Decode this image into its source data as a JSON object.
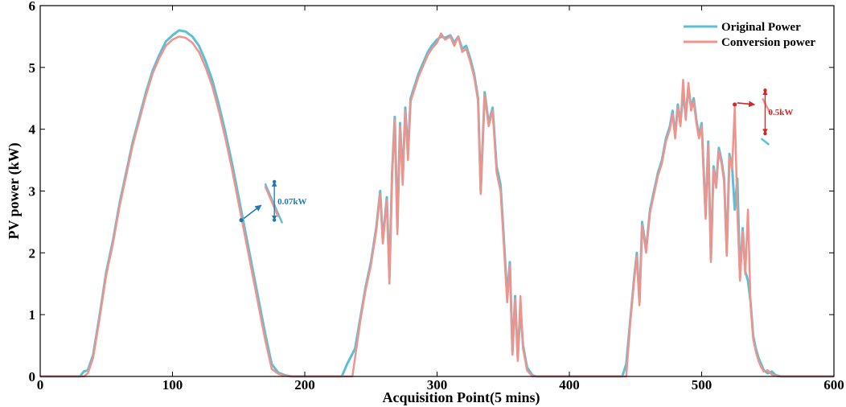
{
  "chart_data": {
    "type": "line",
    "title": "",
    "xlabel": "Acquisition Point(5 mins)",
    "ylabel": "PV power (kW)",
    "xlim": [
      0,
      600
    ],
    "ylim": [
      0,
      6
    ],
    "xticks": [
      "0",
      "100",
      "200",
      "300",
      "400",
      "500",
      "600"
    ],
    "yticks": [
      "0",
      "1",
      "2",
      "3",
      "4",
      "5",
      "6"
    ],
    "legend": {
      "position": "top-right"
    },
    "series": [
      {
        "name": "Original Power",
        "color": "#5bc0d6",
        "points": [
          [
            0,
            0
          ],
          [
            30,
            0
          ],
          [
            33,
            0.08
          ],
          [
            36,
            0.1
          ],
          [
            40,
            0.35
          ],
          [
            45,
            1.0
          ],
          [
            50,
            1.7
          ],
          [
            55,
            2.2
          ],
          [
            60,
            2.8
          ],
          [
            65,
            3.3
          ],
          [
            70,
            3.8
          ],
          [
            75,
            4.2
          ],
          [
            80,
            4.6
          ],
          [
            85,
            4.95
          ],
          [
            90,
            5.2
          ],
          [
            95,
            5.42
          ],
          [
            100,
            5.52
          ],
          [
            105,
            5.6
          ],
          [
            110,
            5.58
          ],
          [
            115,
            5.5
          ],
          [
            120,
            5.35
          ],
          [
            125,
            5.1
          ],
          [
            130,
            4.8
          ],
          [
            135,
            4.4
          ],
          [
            140,
            3.95
          ],
          [
            145,
            3.45
          ],
          [
            150,
            2.9
          ],
          [
            155,
            2.35
          ],
          [
            160,
            1.8
          ],
          [
            165,
            1.25
          ],
          [
            170,
            0.7
          ],
          [
            175,
            0.2
          ],
          [
            180,
            0.06
          ],
          [
            185,
            0.02
          ],
          [
            190,
            0
          ],
          [
            228,
            0
          ],
          [
            232,
            0.2
          ],
          [
            238,
            0.45
          ],
          [
            242,
            0.95
          ],
          [
            246,
            1.45
          ],
          [
            250,
            1.85
          ],
          [
            254,
            2.4
          ],
          [
            257,
            3.0
          ],
          [
            259,
            2.2
          ],
          [
            262,
            2.9
          ],
          [
            264,
            1.6
          ],
          [
            266,
            3.3
          ],
          [
            268,
            4.2
          ],
          [
            270,
            2.4
          ],
          [
            272,
            4.1
          ],
          [
            274,
            3.2
          ],
          [
            276,
            4.35
          ],
          [
            278,
            3.6
          ],
          [
            280,
            4.5
          ],
          [
            283,
            4.7
          ],
          [
            286,
            4.9
          ],
          [
            290,
            5.1
          ],
          [
            293,
            5.25
          ],
          [
            296,
            5.35
          ],
          [
            300,
            5.45
          ],
          [
            303,
            5.5
          ],
          [
            306,
            5.48
          ],
          [
            310,
            5.52
          ],
          [
            313,
            5.4
          ],
          [
            316,
            5.5
          ],
          [
            319,
            5.3
          ],
          [
            322,
            5.35
          ],
          [
            325,
            5.15
          ],
          [
            328,
            4.9
          ],
          [
            331,
            4.5
          ],
          [
            333,
            3.0
          ],
          [
            336,
            4.6
          ],
          [
            339,
            4.1
          ],
          [
            342,
            4.35
          ],
          [
            345,
            3.4
          ],
          [
            348,
            3.1
          ],
          [
            350,
            2.4
          ],
          [
            353,
            1.3
          ],
          [
            355,
            1.85
          ],
          [
            357,
            0.4
          ],
          [
            359,
            1.3
          ],
          [
            361,
            0.3
          ],
          [
            363,
            1.1
          ],
          [
            365,
            0.5
          ],
          [
            368,
            0.15
          ],
          [
            372,
            0.02
          ],
          [
            375,
            0
          ],
          [
            440,
            0
          ],
          [
            443,
            0.2
          ],
          [
            446,
            0.9
          ],
          [
            449,
            1.6
          ],
          [
            451,
            2.0
          ],
          [
            453,
            1.2
          ],
          [
            455,
            2.5
          ],
          [
            458,
            2.05
          ],
          [
            461,
            2.7
          ],
          [
            464,
            3.0
          ],
          [
            467,
            3.3
          ],
          [
            470,
            3.5
          ],
          [
            473,
            3.85
          ],
          [
            476,
            4.05
          ],
          [
            478,
            4.3
          ],
          [
            480,
            3.9
          ],
          [
            482,
            4.4
          ],
          [
            484,
            4.1
          ],
          [
            486,
            4.6
          ],
          [
            488,
            4.2
          ],
          [
            490,
            4.7
          ],
          [
            492,
            4.35
          ],
          [
            494,
            4.5
          ],
          [
            496,
            4.15
          ],
          [
            498,
            3.9
          ],
          [
            500,
            4.1
          ],
          [
            503,
            2.6
          ],
          [
            505,
            3.8
          ],
          [
            507,
            1.9
          ],
          [
            509,
            3.4
          ],
          [
            511,
            3.1
          ],
          [
            513,
            3.7
          ],
          [
            515,
            3.5
          ],
          [
            517,
            3.2
          ],
          [
            519,
            2.0
          ],
          [
            521,
            3.6
          ],
          [
            523,
            3.4
          ],
          [
            525,
            2.7
          ],
          [
            527,
            3.2
          ],
          [
            529,
            1.6
          ],
          [
            531,
            2.4
          ],
          [
            533,
            1.7
          ],
          [
            535,
            1.55
          ],
          [
            537,
            1.2
          ],
          [
            539,
            0.65
          ],
          [
            541,
            0.45
          ],
          [
            543,
            0.3
          ],
          [
            545,
            0.2
          ],
          [
            547,
            0.1
          ],
          [
            550,
            0.05
          ],
          [
            553,
            0.08
          ],
          [
            556,
            0.02
          ],
          [
            560,
            0
          ],
          [
            600,
            0
          ]
        ]
      },
      {
        "name": "Conversion power",
        "color": "#f0938c",
        "points": [
          [
            0,
            0
          ],
          [
            33,
            0
          ],
          [
            36,
            0.05
          ],
          [
            40,
            0.3
          ],
          [
            45,
            0.95
          ],
          [
            50,
            1.65
          ],
          [
            55,
            2.15
          ],
          [
            60,
            2.75
          ],
          [
            65,
            3.25
          ],
          [
            70,
            3.75
          ],
          [
            75,
            4.15
          ],
          [
            80,
            4.55
          ],
          [
            85,
            4.9
          ],
          [
            90,
            5.15
          ],
          [
            95,
            5.35
          ],
          [
            100,
            5.45
          ],
          [
            105,
            5.5
          ],
          [
            110,
            5.48
          ],
          [
            115,
            5.4
          ],
          [
            120,
            5.25
          ],
          [
            125,
            5.0
          ],
          [
            130,
            4.7
          ],
          [
            135,
            4.3
          ],
          [
            140,
            3.85
          ],
          [
            145,
            3.35
          ],
          [
            150,
            2.8
          ],
          [
            155,
            2.25
          ],
          [
            160,
            1.7
          ],
          [
            165,
            1.15
          ],
          [
            170,
            0.6
          ],
          [
            175,
            0.12
          ],
          [
            180,
            0.04
          ],
          [
            185,
            0.01
          ],
          [
            190,
            0
          ],
          [
            236,
            0
          ],
          [
            238,
            0.3
          ],
          [
            242,
            0.9
          ],
          [
            246,
            1.4
          ],
          [
            250,
            1.8
          ],
          [
            254,
            2.35
          ],
          [
            257,
            2.95
          ],
          [
            259,
            2.15
          ],
          [
            262,
            2.85
          ],
          [
            264,
            1.5
          ],
          [
            266,
            3.25
          ],
          [
            268,
            4.15
          ],
          [
            270,
            2.3
          ],
          [
            272,
            4.05
          ],
          [
            274,
            3.1
          ],
          [
            276,
            4.3
          ],
          [
            278,
            3.5
          ],
          [
            280,
            4.45
          ],
          [
            283,
            4.65
          ],
          [
            286,
            4.85
          ],
          [
            290,
            5.05
          ],
          [
            293,
            5.2
          ],
          [
            296,
            5.3
          ],
          [
            300,
            5.4
          ],
          [
            303,
            5.55
          ],
          [
            306,
            5.45
          ],
          [
            310,
            5.5
          ],
          [
            313,
            5.35
          ],
          [
            316,
            5.5
          ],
          [
            319,
            5.25
          ],
          [
            322,
            5.3
          ],
          [
            325,
            5.1
          ],
          [
            328,
            4.85
          ],
          [
            331,
            4.45
          ],
          [
            333,
            2.95
          ],
          [
            336,
            4.55
          ],
          [
            339,
            4.05
          ],
          [
            342,
            4.3
          ],
          [
            345,
            3.3
          ],
          [
            348,
            3.0
          ],
          [
            350,
            2.3
          ],
          [
            353,
            1.2
          ],
          [
            355,
            1.8
          ],
          [
            357,
            0.35
          ],
          [
            359,
            1.25
          ],
          [
            361,
            0.25
          ],
          [
            363,
            1.3
          ],
          [
            365,
            0.45
          ],
          [
            368,
            0.1
          ],
          [
            372,
            0
          ],
          [
            443,
            0
          ],
          [
            446,
            0.85
          ],
          [
            449,
            1.55
          ],
          [
            451,
            1.95
          ],
          [
            453,
            1.15
          ],
          [
            455,
            2.45
          ],
          [
            458,
            2.0
          ],
          [
            461,
            2.65
          ],
          [
            464,
            2.95
          ],
          [
            467,
            3.25
          ],
          [
            470,
            3.45
          ],
          [
            473,
            3.8
          ],
          [
            476,
            4.0
          ],
          [
            478,
            4.25
          ],
          [
            480,
            3.85
          ],
          [
            482,
            4.35
          ],
          [
            484,
            4.05
          ],
          [
            486,
            4.8
          ],
          [
            488,
            4.15
          ],
          [
            490,
            4.75
          ],
          [
            492,
            4.3
          ],
          [
            494,
            4.45
          ],
          [
            496,
            4.1
          ],
          [
            498,
            3.85
          ],
          [
            500,
            4.05
          ],
          [
            503,
            2.55
          ],
          [
            505,
            3.75
          ],
          [
            507,
            1.85
          ],
          [
            509,
            3.35
          ],
          [
            511,
            3.05
          ],
          [
            513,
            3.65
          ],
          [
            515,
            3.45
          ],
          [
            517,
            3.15
          ],
          [
            519,
            1.95
          ],
          [
            521,
            3.55
          ],
          [
            523,
            3.35
          ],
          [
            525,
            4.35
          ],
          [
            527,
            2.65
          ],
          [
            529,
            1.55
          ],
          [
            531,
            2.35
          ],
          [
            533,
            1.65
          ],
          [
            535,
            2.7
          ],
          [
            537,
            1.15
          ],
          [
            539,
            0.6
          ],
          [
            541,
            0.4
          ],
          [
            543,
            0.25
          ],
          [
            545,
            0.15
          ],
          [
            547,
            0.08
          ],
          [
            550,
            0.1
          ],
          [
            553,
            0.03
          ],
          [
            556,
            0.01
          ],
          [
            560,
            0
          ],
          [
            600,
            0
          ]
        ]
      }
    ],
    "annotations": [
      {
        "text": "0.07kW",
        "color": "#1f77b4",
        "marker": [
          152,
          2.53
        ],
        "arrow_to": [
          167,
          2.77
        ],
        "zoom_original": [
          [
            170,
            3.12
          ],
          [
            183,
            2.48
          ]
        ],
        "zoom_conversion": [
          [
            170,
            3.08
          ],
          [
            180,
            2.58
          ]
        ],
        "span": [
          177,
          3.15,
          2.53
        ]
      },
      {
        "text": "0.5kW",
        "color": "#d62728",
        "marker": [
          525,
          4.4
        ],
        "arrow_to": [
          540,
          4.4
        ],
        "zoom_original": [
          [
            545,
            3.85
          ],
          [
            551,
            3.75
          ]
        ],
        "zoom_conversion": [
          [
            546,
            4.5
          ],
          [
            552,
            4.25
          ]
        ],
        "span": [
          548,
          4.63,
          3.93
        ]
      }
    ]
  }
}
